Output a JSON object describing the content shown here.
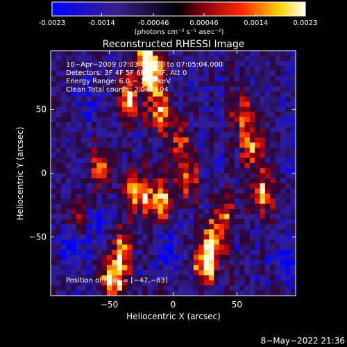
{
  "colorbar": {
    "tick_labels": [
      "-0.0023",
      "-0.0014",
      "-0.00046",
      "0.00046",
      "0.0014",
      "0.0023"
    ],
    "tick_values": [
      -0.0023,
      -0.0014,
      -0.00046,
      0.00046,
      0.0014,
      0.0023
    ],
    "range": [
      -0.0023,
      0.0023
    ],
    "unit_label": "(photons cm⁻² s⁻¹ asec⁻²)"
  },
  "chart_data": {
    "type": "heatmap",
    "title": "Reconstructed RHESSI Image",
    "xlabel": "Heliocentric X (arcsec)",
    "ylabel": "Heliocentric Y (arcsec)",
    "xlim": [
      -96,
      96
    ],
    "ylim": [
      -96,
      96
    ],
    "x_ticks": [
      -50,
      0,
      50
    ],
    "y_ticks": [
      -50,
      0,
      50
    ],
    "x_tick_labels": [
      "−50",
      "0",
      "50"
    ],
    "y_tick_labels": [
      "−50",
      "0",
      "50"
    ],
    "colormap": "blue-purple-red-yellow-white",
    "value_range": [
      -0.0023,
      0.0023
    ],
    "grid_cols": 48,
    "grid_rows": 48,
    "annotations": [
      "10−Apr−2009 07:03:00.000 to 07:05:04.000",
      "Detectors: 3F 4F 5F 6F 7F 8F, Att 0",
      "Energy Range: 6.0 − 12.0 keV",
      "Clean     Total counts: 2.04E+04"
    ],
    "peak_label": "Position of Peak = [−47,−83]",
    "peak_position": [
      -47,
      -83
    ],
    "bright_regions": [
      {
        "x": -22,
        "y": 90,
        "level": 0.95
      },
      {
        "x": -35,
        "y": 58,
        "level": 0.85
      },
      {
        "x": -10,
        "y": 48,
        "level": 0.7
      },
      {
        "x": -28,
        "y": -15,
        "level": 0.9
      },
      {
        "x": -10,
        "y": -22,
        "level": 0.85
      },
      {
        "x": -55,
        "y": 5,
        "level": 0.65
      },
      {
        "x": 10,
        "y": -5,
        "level": 0.7
      },
      {
        "x": 30,
        "y": -55,
        "level": 0.9
      },
      {
        "x": 25,
        "y": -72,
        "level": 0.85
      },
      {
        "x": -47,
        "y": -83,
        "level": 1.0
      },
      {
        "x": -40,
        "y": -60,
        "level": 0.7
      },
      {
        "x": 62,
        "y": 20,
        "level": 0.7
      },
      {
        "x": 70,
        "y": -15,
        "level": 0.8
      },
      {
        "x": 55,
        "y": 45,
        "level": 0.55
      },
      {
        "x": -75,
        "y": -35,
        "level": 0.5
      },
      {
        "x": 5,
        "y": 25,
        "level": 0.55
      },
      {
        "x": 40,
        "y": -30,
        "level": 0.6
      },
      {
        "x": -15,
        "y": 75,
        "level": 0.8
      }
    ],
    "dark_regions": [
      {
        "x": -60,
        "y": -40,
        "level": -0.6
      },
      {
        "x": -80,
        "y": -55,
        "level": -0.7
      },
      {
        "x": -5,
        "y": -60,
        "level": -0.55
      },
      {
        "x": 85,
        "y": -70,
        "level": -0.5
      },
      {
        "x": -65,
        "y": 55,
        "level": -0.35
      }
    ]
  },
  "timestamp": "8−May−2022 21:36"
}
